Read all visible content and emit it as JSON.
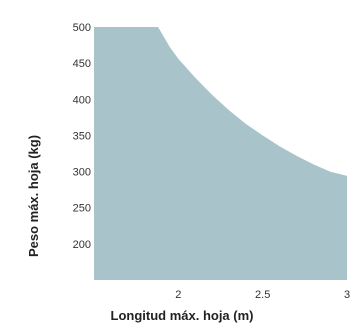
{
  "chart_data": {
    "type": "area",
    "title": "",
    "xlabel": "Longitud máx. hoja (m)",
    "ylabel": "Peso máx. hoja (kg)",
    "xlim": [
      1.5,
      3.0
    ],
    "ylim": [
      150,
      500
    ],
    "x_ticks": [
      2,
      2.5,
      3
    ],
    "x_tick_labels": [
      "2",
      "2.5",
      "3"
    ],
    "y_ticks": [
      200,
      250,
      300,
      350,
      400,
      450,
      500
    ],
    "y_tick_labels": [
      "200",
      "250",
      "300",
      "350",
      "400",
      "450",
      "500"
    ],
    "grid": false,
    "legend": "none",
    "series": [
      {
        "color": "#a9c3ca",
        "x": [
          1.5,
          1.88,
          1.95,
          2.0,
          2.1,
          2.2,
          2.3,
          2.4,
          2.5,
          2.6,
          2.7,
          2.8,
          2.9,
          3.0
        ],
        "y": [
          500,
          500,
          472,
          456,
          430,
          406,
          385,
          366,
          350,
          335,
          322,
          310,
          300,
          294
        ]
      }
    ]
  }
}
